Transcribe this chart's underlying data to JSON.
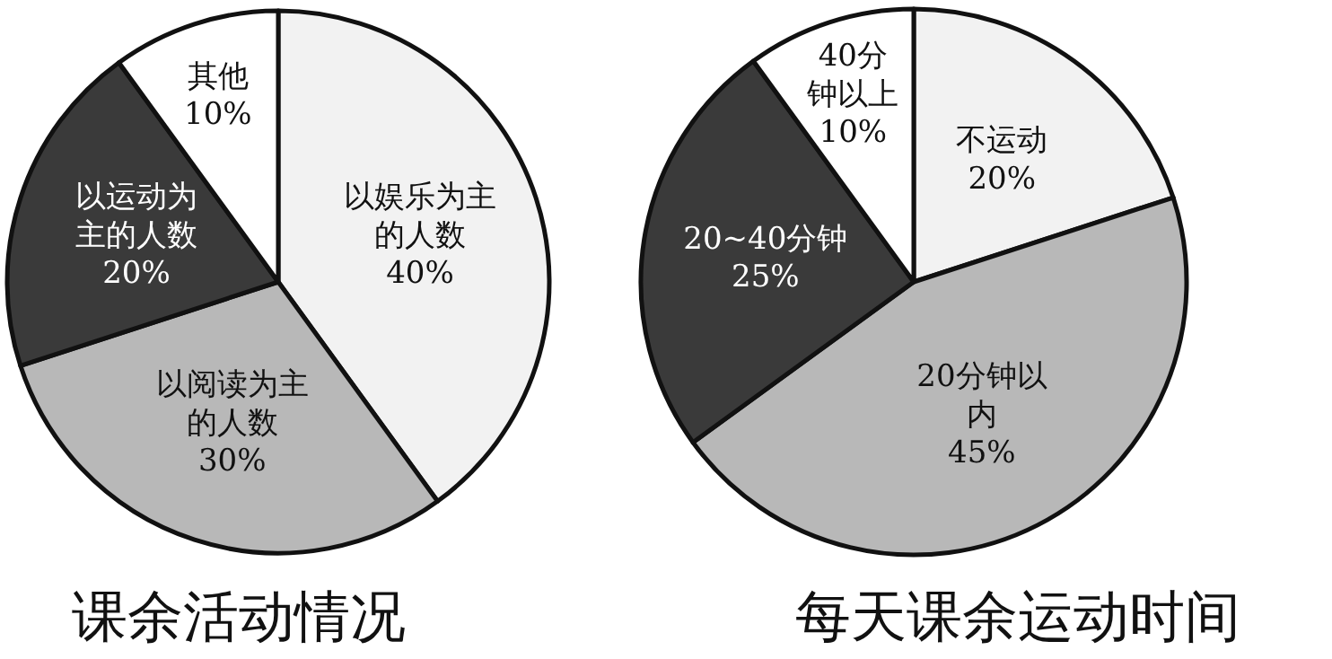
{
  "chart_data": [
    {
      "type": "pie",
      "title": "课余活动情况",
      "categories": [
        "以娱乐为主的人数",
        "以阅读为主的人数",
        "以运动为主的人数",
        "其他"
      ],
      "values": [
        40,
        30,
        20,
        10
      ],
      "value_labels": [
        "40%",
        "30%",
        "20%",
        "10%"
      ],
      "colors": [
        "#f2f2f2",
        "#b8b8b8",
        "#3a3a3a",
        "#ffffff"
      ]
    },
    {
      "type": "pie",
      "title": "每天课余运动时间",
      "categories": [
        "不运动",
        "20分钟以内",
        "20~40分钟",
        "40分钟以上"
      ],
      "values": [
        20,
        45,
        25,
        10
      ],
      "value_labels": [
        "20%",
        "45%",
        "25%",
        "10%"
      ],
      "colors": [
        "#f2f2f2",
        "#b8b8b8",
        "#3a3a3a",
        "#ffffff"
      ]
    }
  ]
}
